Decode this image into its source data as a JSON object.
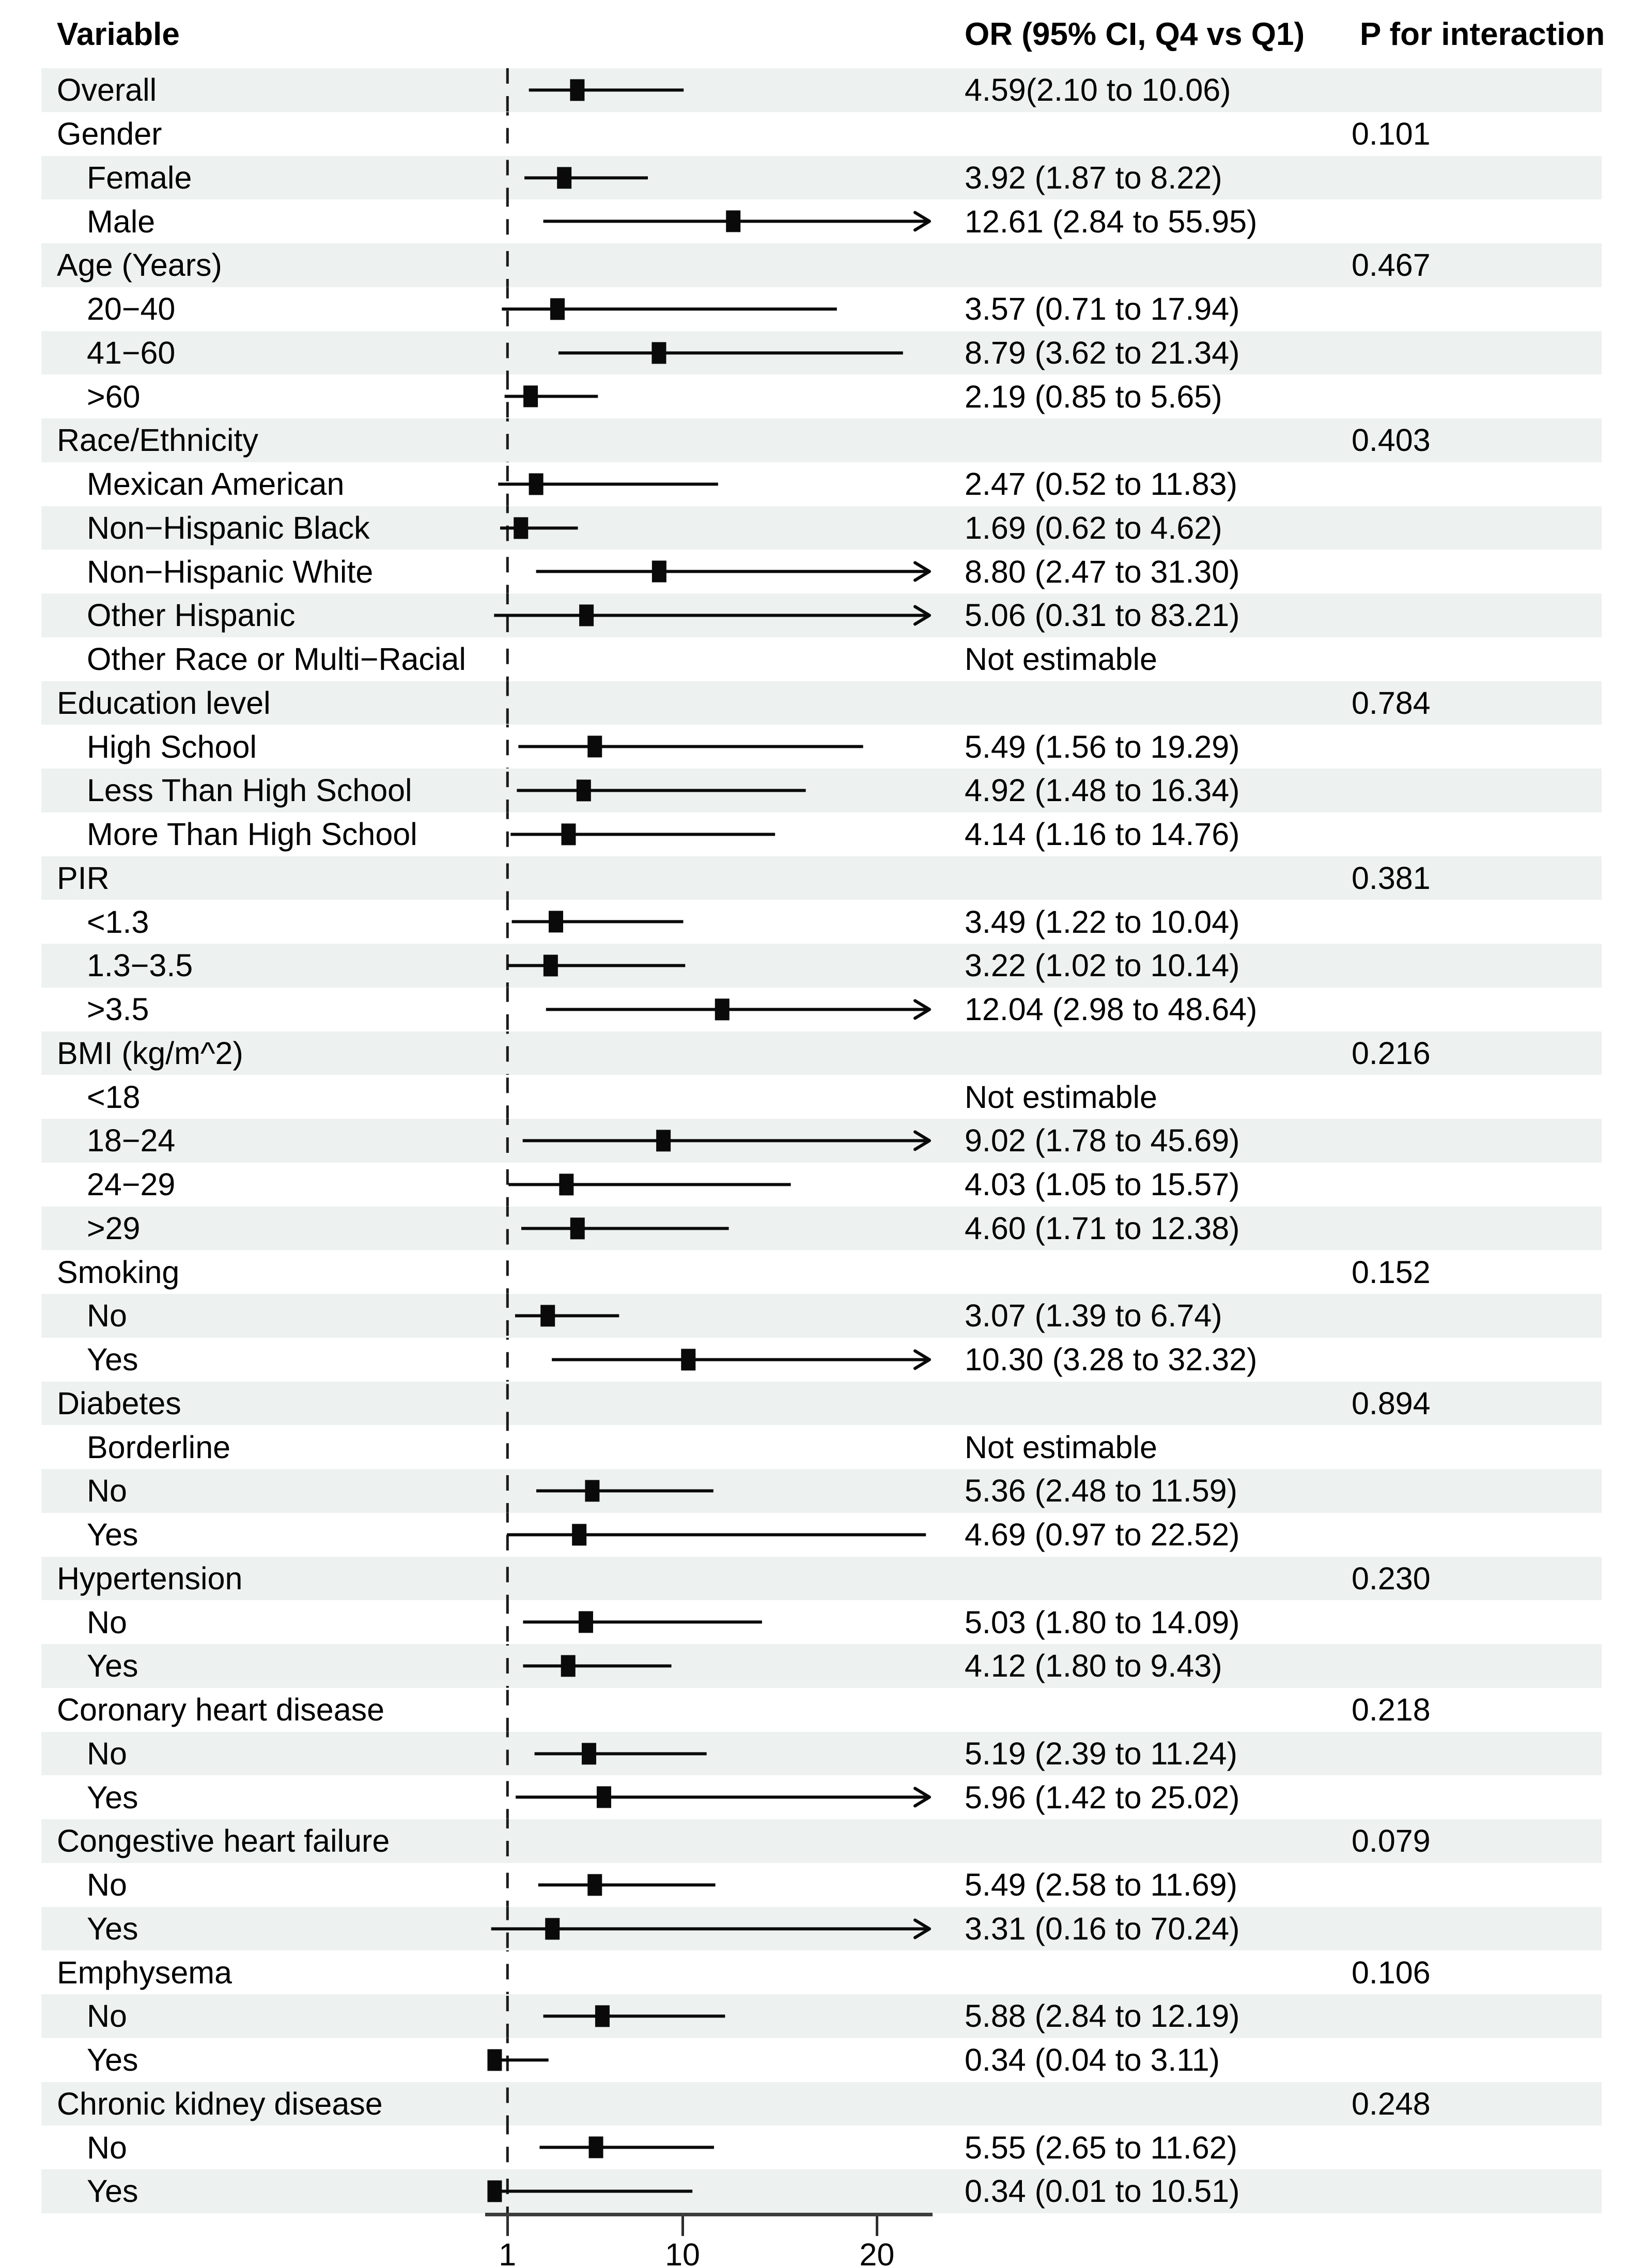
{
  "header": {
    "variable": "Variable",
    "or": "OR (95% CI, Q4 vs Q1)",
    "p": "P for interaction"
  },
  "chart_data": {
    "type": "forest",
    "orientation": "horizontal",
    "scale": "linear",
    "xlim": [
      -0.15,
      22.86
    ],
    "ref_line": 1,
    "ticks": [
      {
        "value": 1,
        "label": "1"
      },
      {
        "value": 10,
        "label": "10"
      },
      {
        "value": 20,
        "label": "20"
      }
    ],
    "grid": false,
    "colors": {
      "marker": "#0a0a0a",
      "ci_line": "#0a0a0a",
      "band": "#edf1f0",
      "axis": "#3d3d3d",
      "ref_dash": "#1a1a1a",
      "text": "#000000"
    },
    "not_estimable_text": "Not estimable",
    "rows": [
      {
        "label": "Overall",
        "indent": false,
        "or_text": "4.59(2.10 to 10.06)",
        "p_text": "",
        "est": 4.59,
        "lo": 2.1,
        "hi": 10.06
      },
      {
        "label": "Gender",
        "indent": false,
        "or_text": "",
        "p_text": "0.101"
      },
      {
        "label": "Female",
        "indent": true,
        "or_text": "3.92 (1.87 to 8.22)",
        "p_text": "",
        "est": 3.92,
        "lo": 1.87,
        "hi": 8.22
      },
      {
        "label": "Male",
        "indent": true,
        "or_text": "12.61 (2.84 to 55.95)",
        "p_text": "",
        "est": 12.61,
        "lo": 2.84,
        "hi": 55.95
      },
      {
        "label": "Age (Years)",
        "indent": false,
        "or_text": "",
        "p_text": "0.467"
      },
      {
        "label": "20−40",
        "indent": true,
        "or_text": "3.57 (0.71 to 17.94)",
        "p_text": "",
        "est": 3.57,
        "lo": 0.71,
        "hi": 17.94
      },
      {
        "label": "41−60",
        "indent": true,
        "or_text": "8.79 (3.62 to 21.34)",
        "p_text": "",
        "est": 8.79,
        "lo": 3.62,
        "hi": 21.34
      },
      {
        "label": ">60",
        "indent": true,
        "or_text": "2.19 (0.85 to 5.65)",
        "p_text": "",
        "est": 2.19,
        "lo": 0.85,
        "hi": 5.65
      },
      {
        "label": "Race/Ethnicity",
        "indent": false,
        "or_text": "",
        "p_text": "0.403"
      },
      {
        "label": "Mexican American",
        "indent": true,
        "or_text": "2.47 (0.52 to 11.83)",
        "p_text": "",
        "est": 2.47,
        "lo": 0.52,
        "hi": 11.83
      },
      {
        "label": "Non−Hispanic Black",
        "indent": true,
        "or_text": "1.69 (0.62 to 4.62)",
        "p_text": "",
        "est": 1.69,
        "lo": 0.62,
        "hi": 4.62
      },
      {
        "label": "Non−Hispanic White",
        "indent": true,
        "or_text": "8.80 (2.47 to 31.30)",
        "p_text": "",
        "est": 8.8,
        "lo": 2.47,
        "hi": 31.3
      },
      {
        "label": "Other Hispanic",
        "indent": true,
        "or_text": "5.06 (0.31 to 83.21)",
        "p_text": "",
        "est": 5.06,
        "lo": 0.31,
        "hi": 83.21
      },
      {
        "label": "Other Race or Multi−Racial",
        "indent": true,
        "or_text": "Not estimable",
        "p_text": ""
      },
      {
        "label": "Education level",
        "indent": false,
        "or_text": "",
        "p_text": "0.784"
      },
      {
        "label": "High School",
        "indent": true,
        "or_text": "5.49 (1.56 to 19.29)",
        "p_text": "",
        "est": 5.49,
        "lo": 1.56,
        "hi": 19.29
      },
      {
        "label": "Less Than High School",
        "indent": true,
        "or_text": "4.92 (1.48 to 16.34)",
        "p_text": "",
        "est": 4.92,
        "lo": 1.48,
        "hi": 16.34
      },
      {
        "label": "More Than High School",
        "indent": true,
        "or_text": "4.14 (1.16 to 14.76)",
        "p_text": "",
        "est": 4.14,
        "lo": 1.16,
        "hi": 14.76
      },
      {
        "label": "PIR",
        "indent": false,
        "or_text": "",
        "p_text": "0.381"
      },
      {
        "label": "<1.3",
        "indent": true,
        "or_text": "3.49 (1.22 to 10.04)",
        "p_text": "",
        "est": 3.49,
        "lo": 1.22,
        "hi": 10.04
      },
      {
        "label": "1.3−3.5",
        "indent": true,
        "or_text": "3.22 (1.02 to 10.14)",
        "p_text": "",
        "est": 3.22,
        "lo": 1.02,
        "hi": 10.14
      },
      {
        "label": ">3.5",
        "indent": true,
        "or_text": "12.04 (2.98 to 48.64)",
        "p_text": "",
        "est": 12.04,
        "lo": 2.98,
        "hi": 48.64
      },
      {
        "label": "BMI (kg/m^2)",
        "indent": false,
        "or_text": "",
        "p_text": "0.216"
      },
      {
        "label": "<18",
        "indent": true,
        "or_text": "Not estimable",
        "p_text": ""
      },
      {
        "label": "18−24",
        "indent": true,
        "or_text": "9.02 (1.78 to 45.69)",
        "p_text": "",
        "est": 9.02,
        "lo": 1.78,
        "hi": 45.69
      },
      {
        "label": "24−29",
        "indent": true,
        "or_text": "4.03 (1.05 to 15.57)",
        "p_text": "",
        "est": 4.03,
        "lo": 1.05,
        "hi": 15.57
      },
      {
        "label": ">29",
        "indent": true,
        "or_text": "4.60 (1.71 to 12.38)",
        "p_text": "",
        "est": 4.6,
        "lo": 1.71,
        "hi": 12.38
      },
      {
        "label": "Smoking",
        "indent": false,
        "or_text": "",
        "p_text": "0.152"
      },
      {
        "label": "No",
        "indent": true,
        "or_text": "3.07 (1.39 to 6.74)",
        "p_text": "",
        "est": 3.07,
        "lo": 1.39,
        "hi": 6.74
      },
      {
        "label": "Yes",
        "indent": true,
        "or_text": "10.30 (3.28 to 32.32)",
        "p_text": "",
        "est": 10.3,
        "lo": 3.28,
        "hi": 32.32
      },
      {
        "label": "Diabetes",
        "indent": false,
        "or_text": "",
        "p_text": "0.894"
      },
      {
        "label": "Borderline",
        "indent": true,
        "or_text": "Not estimable",
        "p_text": ""
      },
      {
        "label": "No",
        "indent": true,
        "or_text": "5.36 (2.48 to 11.59)",
        "p_text": "",
        "est": 5.36,
        "lo": 2.48,
        "hi": 11.59
      },
      {
        "label": "Yes",
        "indent": true,
        "or_text": "4.69 (0.97 to 22.52)",
        "p_text": "",
        "est": 4.69,
        "lo": 0.97,
        "hi": 22.52
      },
      {
        "label": "Hypertension",
        "indent": false,
        "or_text": "",
        "p_text": "0.230"
      },
      {
        "label": "No",
        "indent": true,
        "or_text": "5.03 (1.80 to 14.09)",
        "p_text": "",
        "est": 5.03,
        "lo": 1.8,
        "hi": 14.09
      },
      {
        "label": "Yes",
        "indent": true,
        "or_text": "4.12 (1.80 to 9.43)",
        "p_text": "",
        "est": 4.12,
        "lo": 1.8,
        "hi": 9.43
      },
      {
        "label": "Coronary heart disease",
        "indent": false,
        "or_text": "",
        "p_text": "0.218"
      },
      {
        "label": "No",
        "indent": true,
        "or_text": "5.19 (2.39 to 11.24)",
        "p_text": "",
        "est": 5.19,
        "lo": 2.39,
        "hi": 11.24
      },
      {
        "label": "Yes",
        "indent": true,
        "or_text": "5.96 (1.42 to 25.02)",
        "p_text": "",
        "est": 5.96,
        "lo": 1.42,
        "hi": 25.02
      },
      {
        "label": "Congestive heart failure",
        "indent": false,
        "or_text": "",
        "p_text": "0.079"
      },
      {
        "label": "No",
        "indent": true,
        "or_text": "5.49 (2.58 to 11.69)",
        "p_text": "",
        "est": 5.49,
        "lo": 2.58,
        "hi": 11.69
      },
      {
        "label": "Yes",
        "indent": true,
        "or_text": "3.31 (0.16 to 70.24)",
        "p_text": "",
        "est": 3.31,
        "lo": 0.16,
        "hi": 70.24
      },
      {
        "label": "Emphysema",
        "indent": false,
        "or_text": "",
        "p_text": "0.106"
      },
      {
        "label": "No",
        "indent": true,
        "or_text": "5.88 (2.84 to 12.19)",
        "p_text": "",
        "est": 5.88,
        "lo": 2.84,
        "hi": 12.19
      },
      {
        "label": "Yes",
        "indent": true,
        "or_text": "0.34 (0.04 to 3.11)",
        "p_text": "",
        "est": 0.34,
        "lo": 0.04,
        "hi": 3.11
      },
      {
        "label": "Chronic kidney disease",
        "indent": false,
        "or_text": "",
        "p_text": "0.248"
      },
      {
        "label": "No",
        "indent": true,
        "or_text": "5.55 (2.65 to 11.62)",
        "p_text": "",
        "est": 5.55,
        "lo": 2.65,
        "hi": 11.62
      },
      {
        "label": "Yes",
        "indent": true,
        "or_text": "0.34 (0.01 to 10.51)",
        "p_text": "",
        "est": 0.34,
        "lo": 0.01,
        "hi": 10.51
      }
    ]
  }
}
